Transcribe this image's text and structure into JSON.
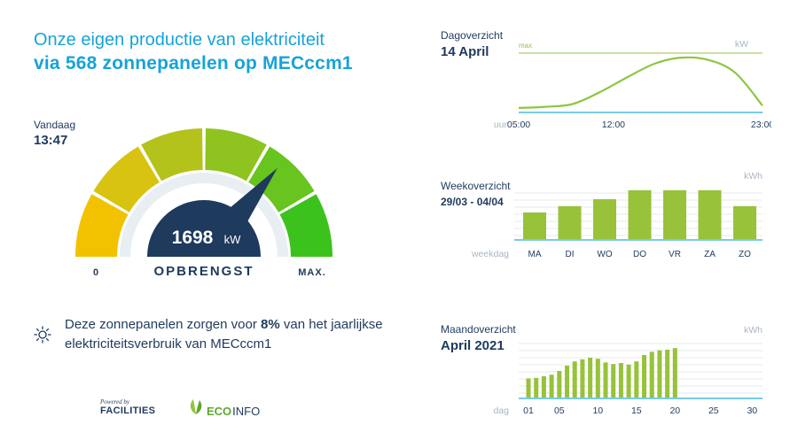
{
  "header": {
    "line1": "Onze eigen productie van elektriciteit",
    "line2": "via 568 zonnepanelen op MECccm1"
  },
  "today": {
    "label": "Vandaag",
    "time": "13:47"
  },
  "gauge": {
    "value": "1698",
    "unit": "kW",
    "caption": "OPBRENGST",
    "min_label": "0",
    "max_label": "MAX.",
    "fraction": 0.72,
    "segment_colors": [
      "#f2c200",
      "#d8c410",
      "#b4c21c",
      "#8fc31f",
      "#68c41e",
      "#3cc21c"
    ]
  },
  "info": {
    "text_before": "Deze zonnepanelen zorgen voor ",
    "percentage": "8%",
    "text_after": " van het jaarlijkse elektriciteitsverbruik van MECccm1",
    "icon": "sun-icon"
  },
  "footer": {
    "powered_by": "Powered by",
    "facilities": "FACILITIES",
    "eco": "ECO",
    "info": "INFO"
  },
  "colors": {
    "accent_blue": "#17a3d9",
    "navy": "#1e3a5c",
    "bar_green": "#97c23a",
    "line_green": "#8dc63f"
  },
  "charts": {
    "day": {
      "title": "Dagoverzicht",
      "period": "14 April",
      "unit": "kW",
      "max_label": "max",
      "axis_label": "uur"
    },
    "week": {
      "title": "Weekoverzicht",
      "period": "29/03 - 04/04",
      "unit": "kWh",
      "axis_label": "weekdag"
    },
    "month": {
      "title": "Maandoverzicht",
      "period": "April 2021",
      "unit": "kWh",
      "axis_label": "dag"
    }
  },
  "chart_data": [
    {
      "type": "line",
      "x": [
        "05:00",
        "07:00",
        "09:00",
        "11:00",
        "13:00",
        "15:00",
        "17:00",
        "19:00",
        "21:00",
        "23:00"
      ],
      "x_ticks": [
        "05:00",
        "12:00",
        "23:00"
      ],
      "values": [
        0.08,
        0.1,
        0.15,
        0.36,
        0.62,
        0.86,
        0.97,
        0.93,
        0.7,
        0.12
      ],
      "ylim": [
        0,
        1.05
      ]
    },
    {
      "type": "bar",
      "categories": [
        "MA",
        "DI",
        "WO",
        "DO",
        "VR",
        "ZA",
        "ZO"
      ],
      "values": [
        0.5,
        0.62,
        0.75,
        0.92,
        0.92,
        0.92,
        0.62
      ],
      "ylim": [
        0,
        1
      ]
    },
    {
      "type": "bar",
      "x_ticks": [
        "01",
        "05",
        "10",
        "15",
        "20",
        "25",
        "30"
      ],
      "values": [
        0.36,
        0.37,
        0.4,
        0.43,
        0.5,
        0.6,
        0.68,
        0.72,
        0.75,
        0.73,
        0.66,
        0.63,
        0.65,
        0.62,
        0.68,
        0.8,
        0.86,
        0.89,
        0.9,
        0.93
      ],
      "ylim": [
        0,
        1
      ]
    }
  ]
}
